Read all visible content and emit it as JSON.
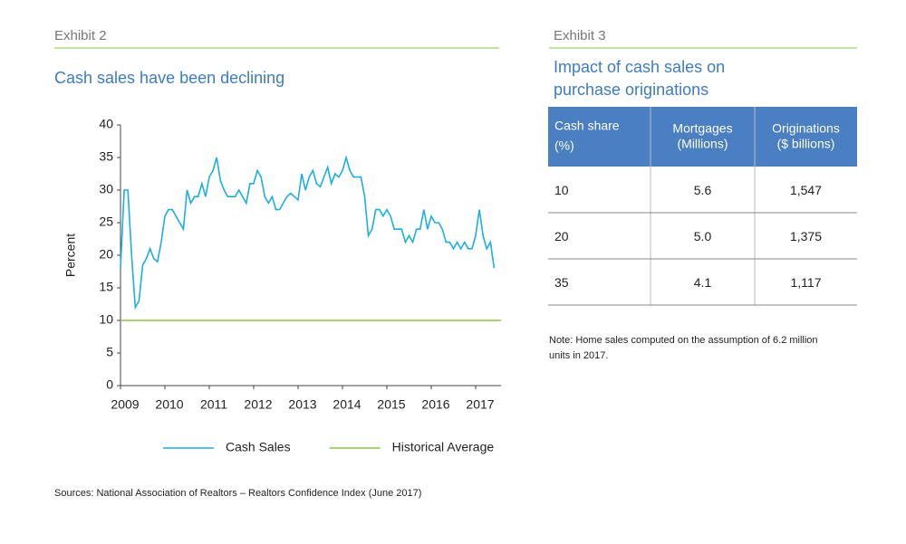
{
  "exhibit2": {
    "label": "Exhibit 2",
    "sources": "Sources: National Association of Realtors – Realtors Confidence Index (June 2017)"
  },
  "chart_data": {
    "type": "line",
    "title": "Cash sales have been declining",
    "y_label": "Percent",
    "categories": [
      "2009",
      null,
      null,
      null,
      null,
      null,
      null,
      null,
      null,
      null,
      null,
      null,
      "2010",
      null,
      null,
      null,
      null,
      null,
      null,
      null,
      null,
      null,
      null,
      null,
      "2011",
      null,
      null,
      null,
      null,
      null,
      null,
      null,
      null,
      null,
      null,
      null,
      "2012",
      null,
      null,
      null,
      null,
      null,
      null,
      null,
      null,
      null,
      null,
      null,
      "2013",
      null,
      null,
      null,
      null,
      null,
      null,
      null,
      null,
      null,
      null,
      null,
      "2014",
      null,
      null,
      null,
      null,
      null,
      null,
      null,
      null,
      null,
      null,
      null,
      "2015",
      null,
      null,
      null,
      null,
      null,
      null,
      null,
      null,
      null,
      null,
      null,
      "2016",
      null,
      null,
      null,
      null,
      null,
      null,
      null,
      null,
      null,
      null,
      null,
      "2017",
      null,
      null,
      null,
      null,
      null
    ],
    "series": [
      {
        "name": "Cash Sales",
        "color": "#1ab0e0",
        "values": [
          18,
          30,
          30,
          20,
          12,
          13,
          18.5,
          19.5,
          21,
          19.5,
          19,
          22,
          26,
          27,
          27,
          26,
          25,
          24,
          30,
          28,
          29,
          29,
          31,
          29,
          32,
          33,
          35,
          31.5,
          30,
          29,
          29,
          29,
          30,
          29,
          28,
          31,
          31,
          33,
          32,
          29,
          28,
          29,
          27,
          27,
          28,
          29,
          29.5,
          29,
          28.5,
          32.5,
          30,
          32,
          33,
          31,
          30.5,
          32,
          33.5,
          31,
          32.5,
          32,
          33,
          35,
          33,
          32,
          32,
          32,
          29,
          23,
          24,
          27,
          27,
          26,
          27,
          26,
          24,
          24,
          24,
          22,
          23,
          22,
          24,
          24,
          27,
          24,
          26,
          25,
          25,
          24,
          22,
          22,
          21,
          22,
          21,
          22,
          21,
          21,
          23,
          27,
          23,
          21,
          22,
          18
        ]
      }
    ],
    "hlines": [
      {
        "name": "Historical Average",
        "color": "#8dc63f",
        "value": 10
      }
    ],
    "ylim": [
      0,
      40
    ],
    "yticks": [
      0,
      5,
      10,
      15,
      20,
      25,
      30,
      35,
      40
    ],
    "legend": "bottom"
  },
  "exhibit3": {
    "label": "Exhibit 3",
    "title": [
      "Impact of cash sales on",
      "purchase originations"
    ],
    "table": {
      "columns": [
        [
          "Cash share",
          "(%)"
        ],
        [
          "Mortgages",
          "(Millions)"
        ],
        [
          "Originations",
          "($ billions)"
        ]
      ],
      "rows": [
        [
          "10",
          "5.6",
          "1,547"
        ],
        [
          "20",
          "5.0",
          "1,375"
        ],
        [
          "35",
          "4.1",
          "1,117"
        ]
      ]
    },
    "note": [
      "Note: Home sales computed on the assumption of 6.2 million",
      "units in 2017."
    ]
  }
}
